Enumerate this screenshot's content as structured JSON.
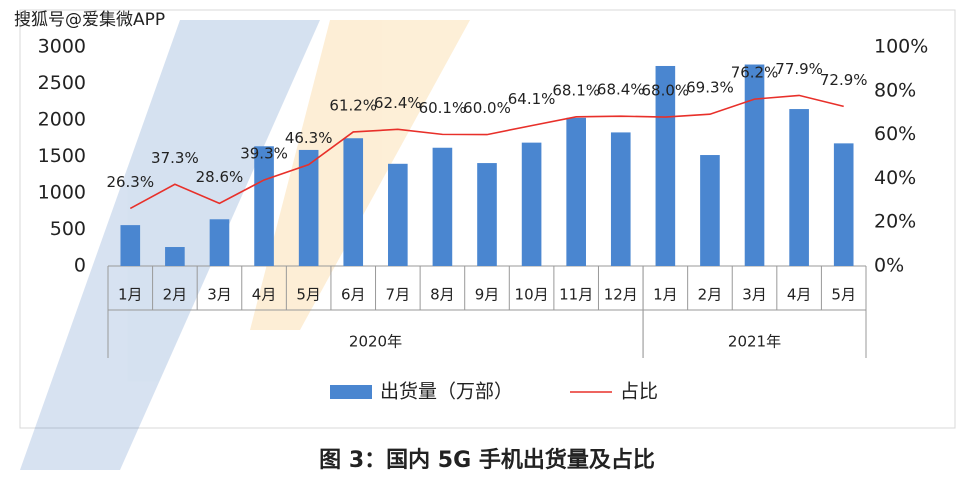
{
  "watermark": "搜狐号@爱集微APP",
  "chart_data": {
    "type": "bar-line",
    "title": "图 3：国内 5G 手机出货量及占比",
    "groups": [
      {
        "label": "2020年",
        "categories": [
          "1月",
          "2月",
          "3月",
          "4月",
          "5月",
          "6月",
          "7月",
          "8月",
          "9月",
          "10月",
          "11月",
          "12月"
        ]
      },
      {
        "label": "2021年",
        "categories": [
          "1月",
          "2月",
          "3月",
          "4月",
          "5月"
        ]
      }
    ],
    "series": [
      {
        "name": "出货量（万部）",
        "type": "bar",
        "color": "#4a86d0",
        "values": [
          560,
          260,
          640,
          1640,
          1590,
          1750,
          1400,
          1620,
          1410,
          1690,
          2030,
          1830,
          2740,
          1520,
          2760,
          2150,
          1680
        ]
      },
      {
        "name": "占比",
        "type": "line",
        "axis": "y2",
        "color": "#e8302a",
        "values": [
          26.3,
          37.3,
          28.6,
          39.3,
          46.3,
          61.2,
          62.4,
          60.1,
          60.0,
          64.1,
          68.1,
          68.4,
          68.0,
          69.3,
          76.2,
          77.9,
          72.9
        ],
        "value_labels": [
          "26.3%",
          "37.3%",
          "28.6%",
          "39.3%",
          "46.3%",
          "61.2%",
          "62.4%",
          "60.1%",
          "60.0%",
          "64.1%",
          "68.1%",
          "68.4%",
          "68.0%",
          "69.3%",
          "76.2%",
          "77.9%",
          "72.9%"
        ]
      }
    ],
    "ylim": [
      0,
      3000
    ],
    "yticks": [
      0,
      500,
      1000,
      1500,
      2000,
      2500,
      3000
    ],
    "y2lim": [
      0,
      100
    ],
    "y2ticks": [
      {
        "value": 0,
        "label": "0%"
      },
      {
        "value": 20,
        "label": "20%"
      },
      {
        "value": 40,
        "label": "40%"
      },
      {
        "value": 60,
        "label": "60%"
      },
      {
        "value": 80,
        "label": "80%"
      },
      {
        "value": 100,
        "label": "100%"
      }
    ]
  }
}
